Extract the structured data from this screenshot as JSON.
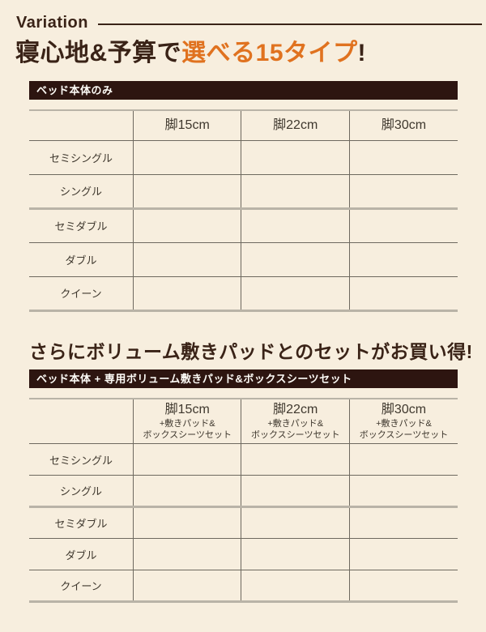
{
  "colors": {
    "page_background": "#f7eede",
    "bar_background": "#2d1510",
    "bar_text": "#fdfbf6",
    "heading_text": "#3a2317",
    "accent_orange": "#e0721f",
    "table_text": "#3f382e",
    "border_dark": "#6e695f",
    "border_light": "#b9b3a7"
  },
  "header": {
    "eyebrow": "Variation",
    "title": {
      "pre": "寝心地&予算で",
      "highlight": "選べる15タイプ",
      "post": "!"
    }
  },
  "sections": [
    {
      "bar_label": "ベッド本体のみ",
      "table": {
        "columns": [
          {
            "title": "脚15cm"
          },
          {
            "title": "脚22cm"
          },
          {
            "title": "脚30cm"
          }
        ],
        "rows": [
          "セミシングル",
          "シングル",
          "セミダブル",
          "ダブル",
          "クイーン"
        ]
      }
    },
    {
      "heading": "さらにボリューム敷きパッドとのセットがお買い得!",
      "bar_label": "ベッド本体 + 専用ボリューム敷きパッド&ボックスシーツセット",
      "table": {
        "columns": [
          {
            "title": "脚15cm",
            "sub": [
              "+敷きパッド&",
              "ボックスシーツセット"
            ]
          },
          {
            "title": "脚22cm",
            "sub": [
              "+敷きパッド&",
              "ボックスシーツセット"
            ]
          },
          {
            "title": "脚30cm",
            "sub": [
              "+敷きパッド&",
              "ボックスシーツセット"
            ]
          }
        ],
        "rows": [
          "セミシングル",
          "シングル",
          "セミダブル",
          "ダブル",
          "クイーン"
        ]
      }
    }
  ]
}
